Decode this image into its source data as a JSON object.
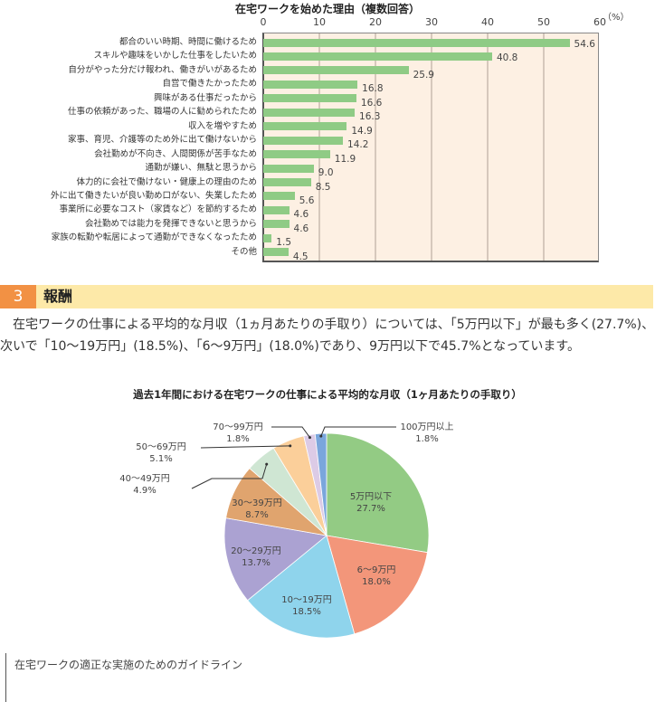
{
  "bar_chart": {
    "title": "在宅ワークを始めた理由（複数回答）",
    "unit": "（%）",
    "ticks": [
      "0",
      "10",
      "20",
      "30",
      "40",
      "50",
      "60"
    ]
  },
  "section": {
    "number": "3",
    "title": "報酬",
    "paragraph": "在宅ワークの仕事による平均的な月収（1ヵ月あたりの手取り）については、「5万円以下」が最も多く(27.7%)、次いで「10～19万円」(18.5%)、「6～9万円」(18.0%)であり、9万円以下で45.7%となっています。"
  },
  "pie_chart": {
    "title": "過去1年間における在宅ワークの仕事による平均的な月収（1ヶ月あたりの手取り）"
  },
  "footer": {
    "text": "在宅ワークの適正な実施のためのガイドライン"
  },
  "chart_data": [
    {
      "type": "bar",
      "orientation": "horizontal",
      "title": "在宅ワークを始めた理由（複数回答）",
      "xlabel": "（%）",
      "ylabel": "",
      "xlim": [
        0,
        60
      ],
      "xticks": [
        0,
        10,
        20,
        30,
        40,
        50,
        60
      ],
      "grid": true,
      "categories": [
        "都合のいい時期、時間に働けるため",
        "スキルや趣味をいかした仕事をしたいため",
        "自分がやった分だけ報われ、働きがいがあるため",
        "自営で働きたかったため",
        "興味がある仕事だったから",
        "仕事の依頼があった、職場の人に勧められたため",
        "収入を増やすため",
        "家事、育児、介護等のため外に出て働けないから",
        "会社勤めが不向き、人間関係が苦手なため",
        "通勤が嫌い、無駄と思うから",
        "体力的に会社で働けない・健康上の理由のため",
        "外に出て働きたいが良い勤め口がない、失業したため",
        "事業所に必要なコスト（家賃など）を節約するため",
        "会社勤めでは能力を発揮できないと思うから",
        "家族の転勤や転居によって通勤ができなくなったため",
        "その他"
      ],
      "values": [
        54.6,
        40.8,
        25.9,
        16.8,
        16.6,
        16.3,
        14.9,
        14.2,
        11.9,
        9.0,
        8.5,
        5.6,
        4.6,
        4.6,
        1.5,
        4.5
      ],
      "value_labels": [
        "54.6",
        "40.8",
        "25.9",
        "16.8",
        "16.6",
        "16.3",
        "14.9",
        "14.2",
        "11.9",
        "9.0",
        "8.5",
        "5.6",
        "4.6",
        "4.6",
        "1.5",
        "4.5"
      ],
      "bar_color": "#8fcb85",
      "background": "#fdf0e3"
    },
    {
      "type": "pie",
      "title": "過去1年間における在宅ワークの仕事による平均的な月収（1ヶ月あたりの手取り）",
      "slices": [
        {
          "label": "5万円以下",
          "value": 27.7,
          "pct": "27.7%",
          "color": "#93cb84"
        },
        {
          "label": "6～9万円",
          "value": 18.0,
          "pct": "18.0%",
          "color": "#f3967a"
        },
        {
          "label": "10～19万円",
          "value": 18.5,
          "pct": "18.5%",
          "color": "#8fd4ec"
        },
        {
          "label": "20～29万円",
          "value": 13.7,
          "pct": "13.7%",
          "color": "#aba2d2"
        },
        {
          "label": "30～39万円",
          "value": 8.7,
          "pct": "8.7%",
          "color": "#e0a46e"
        },
        {
          "label": "40～49万円",
          "value": 4.9,
          "pct": "4.9%",
          "color": "#cfe6d3"
        },
        {
          "label": "50～69万円",
          "value": 5.1,
          "pct": "5.1%",
          "color": "#fbcf9a"
        },
        {
          "label": "70～99万円",
          "value": 1.8,
          "pct": "1.8%",
          "color": "#dccbe6"
        },
        {
          "label": "100万円以上",
          "value": 1.8,
          "pct": "1.8%",
          "color": "#7aa6dc"
        }
      ]
    }
  ]
}
